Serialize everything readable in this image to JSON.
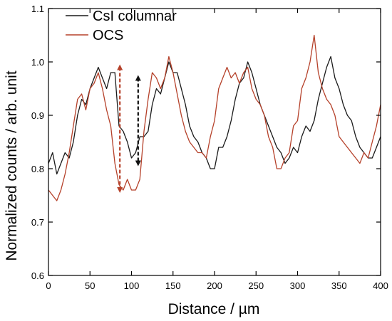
{
  "chart_data": {
    "type": "line",
    "xlabel": "Distance / µm",
    "ylabel": "Normalized counts / arb. unit",
    "xlim": [
      0,
      400
    ],
    "ylim": [
      0.6,
      1.1
    ],
    "x_ticks": [
      0,
      50,
      100,
      150,
      200,
      250,
      300,
      350,
      400
    ],
    "y_ticks": [
      0.6,
      0.7,
      0.8,
      0.9,
      1.0,
      1.1
    ],
    "x_tick_labels": [
      "0",
      "50",
      "100",
      "150",
      "200",
      "250",
      "300",
      "350",
      "400"
    ],
    "y_tick_labels": [
      "0.6",
      "0.7",
      "0.8",
      "0.9",
      "1.0",
      "1.1"
    ],
    "grid": false,
    "legend_position": "top-left",
    "series": [
      {
        "name": "CsI columnar",
        "color": "#1a1a1a",
        "x": [
          0,
          5,
          10,
          15,
          20,
          25,
          30,
          35,
          40,
          45,
          50,
          55,
          60,
          65,
          70,
          75,
          80,
          85,
          90,
          95,
          100,
          105,
          110,
          115,
          120,
          125,
          130,
          135,
          140,
          145,
          150,
          155,
          160,
          165,
          170,
          175,
          180,
          185,
          190,
          195,
          200,
          205,
          210,
          215,
          220,
          225,
          230,
          235,
          240,
          245,
          250,
          255,
          260,
          265,
          270,
          275,
          280,
          285,
          290,
          295,
          300,
          305,
          310,
          315,
          320,
          325,
          330,
          335,
          340,
          345,
          350,
          355,
          360,
          365,
          370,
          375,
          380,
          385,
          390,
          395,
          400
        ],
        "y": [
          0.81,
          0.83,
          0.79,
          0.81,
          0.83,
          0.82,
          0.85,
          0.9,
          0.93,
          0.92,
          0.95,
          0.97,
          0.99,
          0.97,
          0.95,
          0.98,
          0.98,
          0.88,
          0.87,
          0.85,
          0.82,
          0.83,
          0.86,
          0.86,
          0.87,
          0.92,
          0.95,
          0.94,
          0.97,
          1.0,
          0.98,
          0.98,
          0.95,
          0.92,
          0.88,
          0.86,
          0.85,
          0.83,
          0.82,
          0.8,
          0.8,
          0.84,
          0.84,
          0.86,
          0.89,
          0.93,
          0.96,
          0.97,
          1.0,
          0.98,
          0.95,
          0.92,
          0.9,
          0.88,
          0.86,
          0.84,
          0.83,
          0.81,
          0.82,
          0.84,
          0.83,
          0.86,
          0.88,
          0.87,
          0.89,
          0.93,
          0.96,
          0.99,
          1.01,
          0.97,
          0.95,
          0.92,
          0.9,
          0.89,
          0.86,
          0.84,
          0.83,
          0.82,
          0.82,
          0.84,
          0.86
        ]
      },
      {
        "name": "OCS",
        "color": "#b5412a",
        "x": [
          0,
          5,
          10,
          15,
          20,
          25,
          30,
          35,
          40,
          45,
          50,
          55,
          60,
          65,
          70,
          75,
          80,
          85,
          90,
          95,
          100,
          105,
          110,
          115,
          120,
          125,
          130,
          135,
          140,
          145,
          150,
          155,
          160,
          165,
          170,
          175,
          180,
          185,
          190,
          195,
          200,
          205,
          210,
          215,
          220,
          225,
          230,
          235,
          240,
          245,
          250,
          255,
          260,
          265,
          270,
          275,
          280,
          285,
          290,
          295,
          300,
          305,
          310,
          315,
          320,
          325,
          330,
          335,
          340,
          345,
          350,
          355,
          360,
          365,
          370,
          375,
          380,
          385,
          390,
          395,
          400
        ],
        "y": [
          0.76,
          0.75,
          0.74,
          0.76,
          0.79,
          0.83,
          0.88,
          0.93,
          0.94,
          0.91,
          0.95,
          0.96,
          0.98,
          0.95,
          0.91,
          0.88,
          0.81,
          0.77,
          0.76,
          0.78,
          0.76,
          0.76,
          0.78,
          0.87,
          0.93,
          0.98,
          0.97,
          0.95,
          0.97,
          1.01,
          0.98,
          0.94,
          0.9,
          0.87,
          0.85,
          0.84,
          0.83,
          0.83,
          0.82,
          0.86,
          0.89,
          0.95,
          0.97,
          0.99,
          0.97,
          0.98,
          0.96,
          0.98,
          0.99,
          0.95,
          0.93,
          0.92,
          0.9,
          0.86,
          0.84,
          0.8,
          0.8,
          0.82,
          0.83,
          0.88,
          0.89,
          0.95,
          0.97,
          1.0,
          1.05,
          0.98,
          0.95,
          0.93,
          0.92,
          0.9,
          0.86,
          0.85,
          0.84,
          0.83,
          0.82,
          0.81,
          0.83,
          0.82,
          0.85,
          0.88,
          0.92
        ]
      }
    ],
    "annotations": [
      {
        "type": "double-arrow",
        "color": "#b5412a",
        "style": "dashed",
        "x": 86,
        "y_from": 0.76,
        "y_to": 0.99
      },
      {
        "type": "double-arrow",
        "color": "#111111",
        "style": "dashed",
        "x": 108,
        "y_from": 0.81,
        "y_to": 0.97
      }
    ]
  }
}
